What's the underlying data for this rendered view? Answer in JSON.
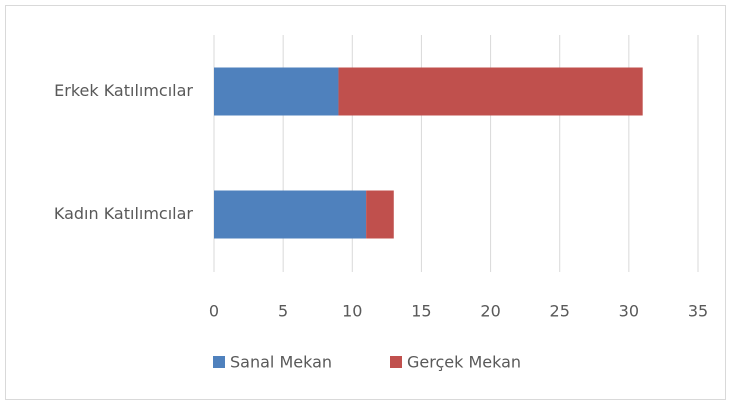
{
  "chart_data": {
    "type": "stacked-barh",
    "categories": [
      "Erkek Katılımcılar",
      "Kadın Katılımcılar"
    ],
    "series": [
      {
        "name": "Sanal Mekan",
        "color": "#4f81bd",
        "values": [
          9,
          11
        ]
      },
      {
        "name": "Gerçek Mekan",
        "color": "#c0504d",
        "values": [
          22,
          2
        ]
      }
    ],
    "xlim": [
      0,
      35
    ],
    "xticks": [
      0,
      5,
      10,
      15,
      20,
      25,
      30,
      35
    ],
    "grid": true,
    "legend": "bottom"
  }
}
